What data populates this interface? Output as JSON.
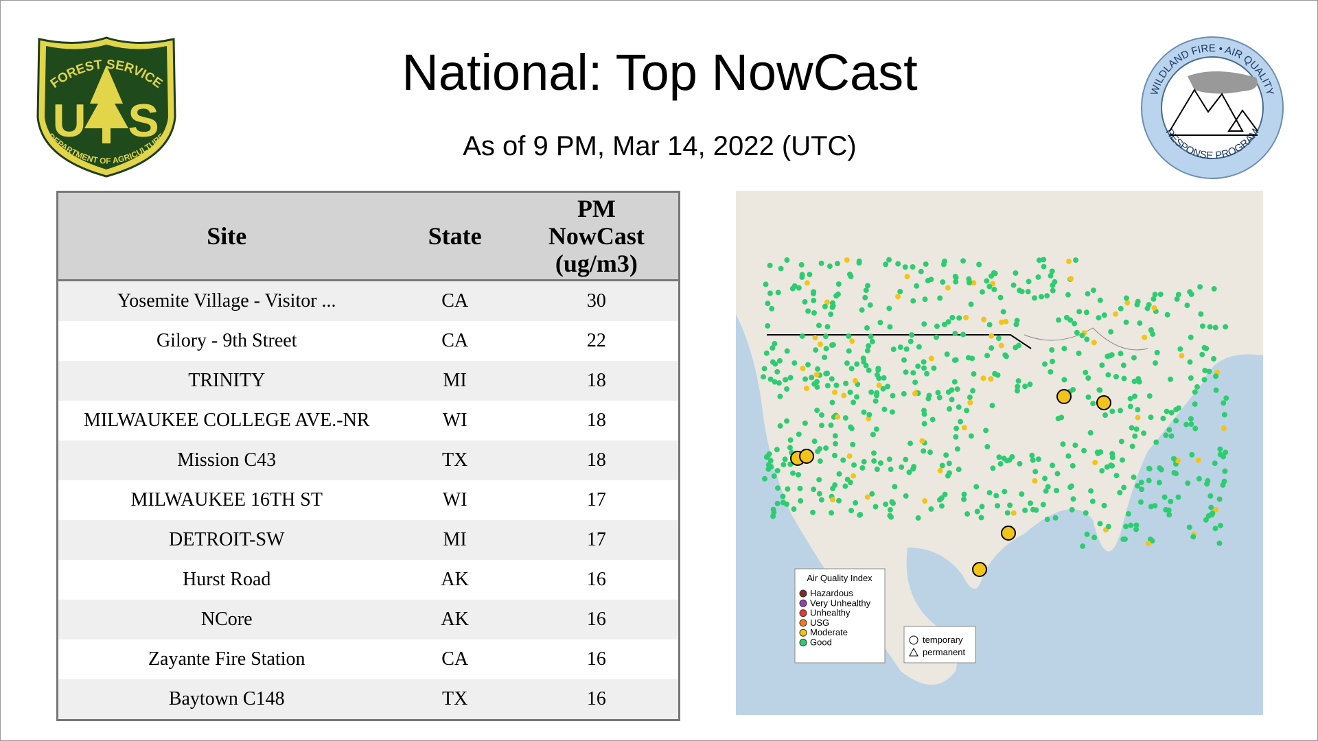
{
  "logos": {
    "left": {
      "top": "FOREST SERVICE",
      "letter_left": "U",
      "letter_right": "S",
      "bottom": "DEPARTMENT OF AGRICULTURE"
    },
    "right": {
      "top": "WILDLAND FIRE • AIR QUALITY",
      "bottom": "RESPONSE PROGRAM"
    }
  },
  "header": {
    "title": "National: Top NowCast",
    "subtitle": "As of  9 PM, Mar 14, 2022 (UTC)"
  },
  "table": {
    "columns": [
      "Site",
      "State",
      "PM NowCast (ug/m3)"
    ],
    "rows": [
      [
        "Yosemite Village - Visitor ...",
        "CA",
        30
      ],
      [
        "Gilory - 9th Street",
        "CA",
        22
      ],
      [
        "TRINITY",
        "MI",
        18
      ],
      [
        "MILWAUKEE COLLEGE AVE.-NR",
        "WI",
        18
      ],
      [
        "Mission C43",
        "TX",
        18
      ],
      [
        "MILWAUKEE 16TH ST",
        "WI",
        17
      ],
      [
        "DETROIT-SW",
        "MI",
        17
      ],
      [
        "Hurst Road",
        "AK",
        16
      ],
      [
        "NCore",
        "AK",
        16
      ],
      [
        "Zayante Fire Station",
        "CA",
        16
      ],
      [
        "Baytown C148",
        "TX",
        16
      ]
    ]
  },
  "map": {
    "legend": {
      "title": "Air Quality Index",
      "items": [
        {
          "label": "Hazardous",
          "color": "#7b2d26"
        },
        {
          "label": "Very Unhealthy",
          "color": "#8e44ad"
        },
        {
          "label": "Unhealthy",
          "color": "#e53935"
        },
        {
          "label": "USG",
          "color": "#f07b1a"
        },
        {
          "label": "Moderate",
          "color": "#f2c418"
        },
        {
          "label": "Good",
          "color": "#2ecc71"
        }
      ]
    },
    "shape_legend": [
      "temporary",
      "permanent"
    ]
  }
}
